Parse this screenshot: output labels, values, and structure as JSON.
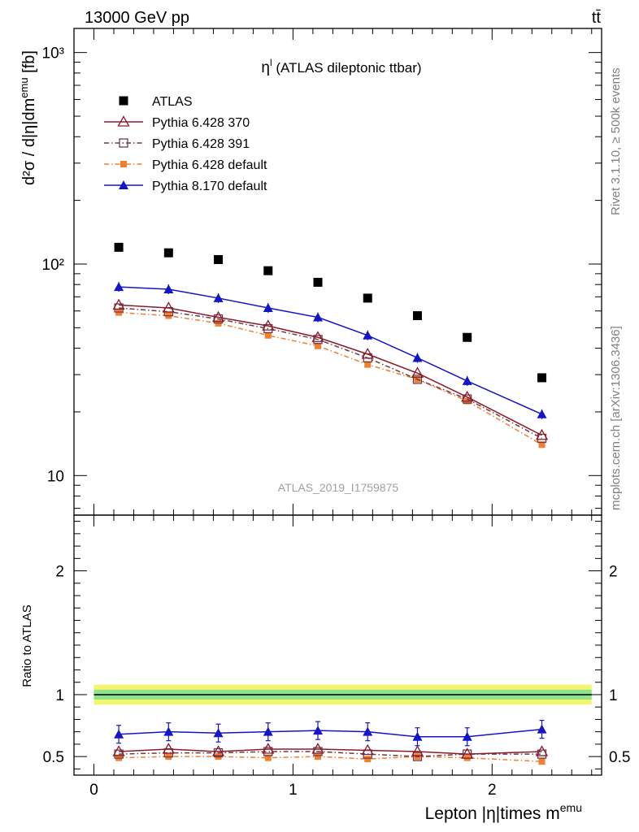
{
  "header": {
    "left": "13000 GeV pp",
    "right": "tt̄"
  },
  "side_labels": {
    "rivet": "Rivet 3.1.10, ≥ 500k events",
    "mcplots": "mcplots.cern.ch [arXiv:1306.3436]"
  },
  "chart_data": {
    "type": "line",
    "title": "(ATLAS dileptonic ttbar)",
    "title_symbol": "η",
    "title_symbol_sup": "l",
    "watermark": "ATLAS_2019_I1759875",
    "xlabel": "Lepton |η|times m",
    "xlabel_sup": "emu",
    "ylabel": "d²σ / d|η|dm",
    "ylabel_sup": "emu",
    "ylabel_unit": "[fb]",
    "ratio_ylabel": "Ratio to ATLAS",
    "xlim": [
      -0.1,
      2.55
    ],
    "ylim": [
      6.5,
      1300
    ],
    "yscale": "log",
    "ratio_ylim": [
      0.35,
      2.45
    ],
    "x_ticks": [
      {
        "v": 0,
        "label": "0"
      },
      {
        "v": 1,
        "label": "1"
      },
      {
        "v": 2,
        "label": "2"
      }
    ],
    "y_ticks": [
      {
        "v": 10,
        "label": "10"
      },
      {
        "v": 100,
        "label": "10²"
      },
      {
        "v": 1000,
        "label": "10³"
      }
    ],
    "ratio_ticks": [
      {
        "v": 0.5,
        "label": "0.5"
      },
      {
        "v": 1,
        "label": "1"
      },
      {
        "v": 2,
        "label": "2"
      }
    ],
    "legend_position": "top-left",
    "x": [
      0.125,
      0.375,
      0.625,
      0.875,
      1.125,
      1.375,
      1.625,
      1.875,
      2.25
    ],
    "series": [
      {
        "name": "ATLAS",
        "color": "#000000",
        "marker": "square",
        "values": [
          120,
          113,
          105,
          93,
          82,
          69,
          57,
          45,
          29
        ],
        "ratio": [
          1,
          1,
          1,
          1,
          1,
          1,
          1,
          1,
          1
        ]
      },
      {
        "name": "Pythia 6.428 370",
        "color": "#8b1a2a",
        "marker": "triangle-open",
        "dash": "",
        "values": [
          64,
          62,
          56,
          51,
          45,
          37.5,
          30.5,
          23.5,
          15.5
        ],
        "ratio": [
          0.54,
          0.56,
          0.54,
          0.56,
          0.56,
          0.55,
          0.54,
          0.52,
          0.54
        ]
      },
      {
        "name": "Pythia 6.428 391",
        "color": "#6e3a46",
        "marker": "square-open",
        "dash": "6,3,1.5,3",
        "values": [
          62,
          59.5,
          55,
          49.5,
          44,
          36,
          28.5,
          23,
          15
        ],
        "ratio": [
          0.52,
          0.53,
          0.53,
          0.54,
          0.54,
          0.52,
          0.5,
          0.52,
          0.52
        ]
      },
      {
        "name": "Pythia 6.428 default",
        "color": "#f07f30",
        "marker": "square-small",
        "dash": "6,3,1.5,3",
        "values": [
          59,
          57,
          52.5,
          46,
          41,
          33.5,
          28.5,
          22.5,
          14
        ],
        "ratio": [
          0.49,
          0.5,
          0.5,
          0.49,
          0.5,
          0.48,
          0.5,
          0.49,
          0.46
        ]
      },
      {
        "name": "Pythia 8.170 default",
        "color": "#1414c8",
        "marker": "triangle",
        "dash": "",
        "values": [
          78,
          76,
          69,
          62,
          56,
          46,
          36,
          28,
          19.5
        ],
        "ratio": [
          0.68,
          0.7,
          0.69,
          0.7,
          0.71,
          0.7,
          0.66,
          0.66,
          0.72
        ]
      }
    ]
  }
}
